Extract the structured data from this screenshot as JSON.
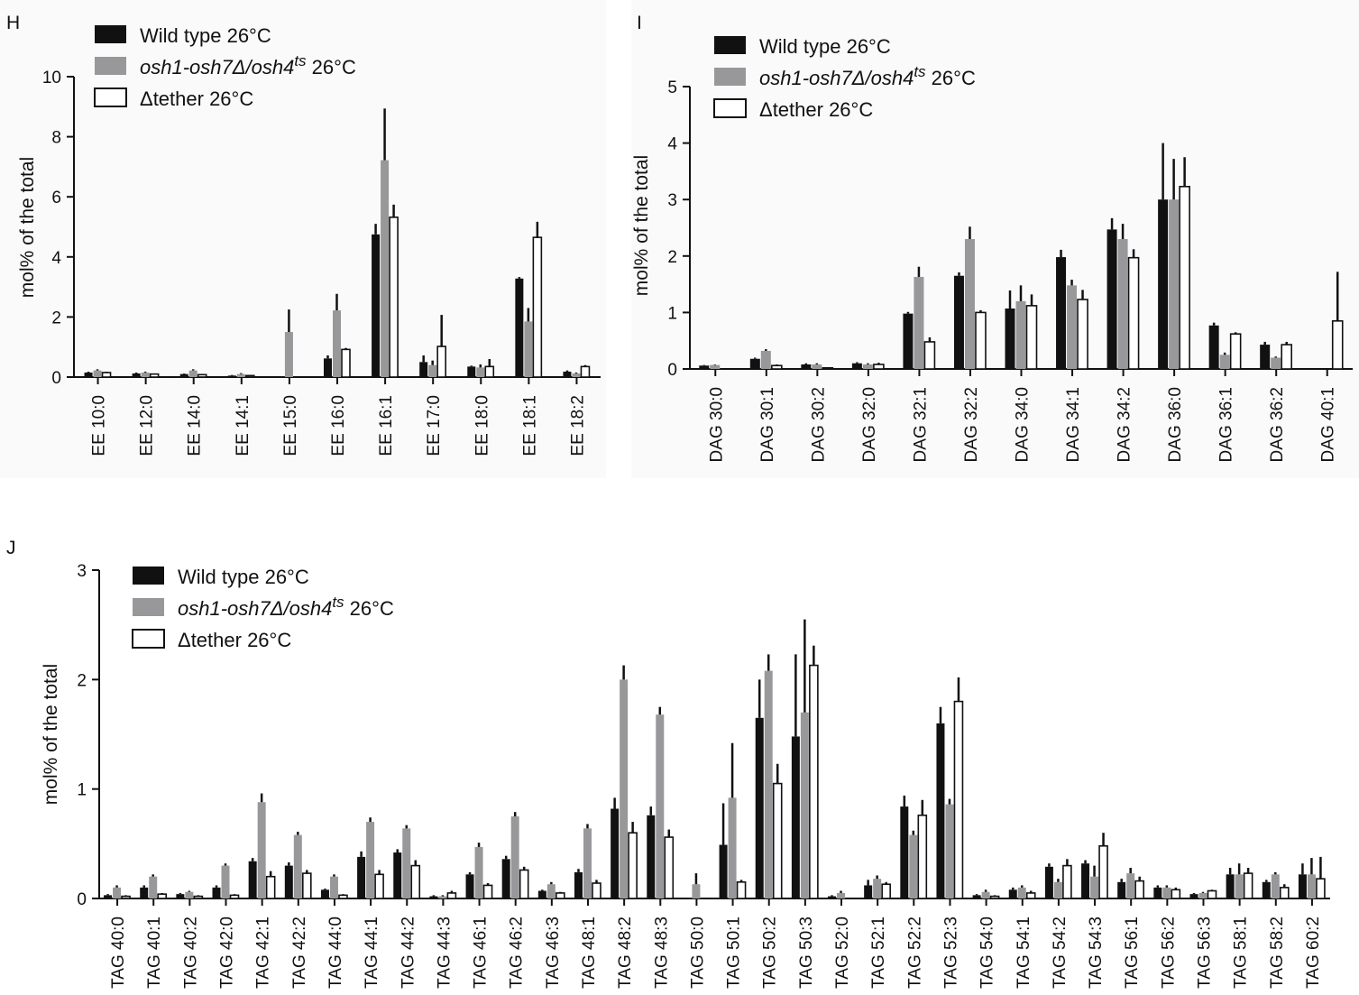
{
  "chart_data": [
    {
      "type": "bar",
      "panel_label": "H",
      "ylabel": "mol% of the total",
      "ylim": [
        0,
        10
      ],
      "yticks": [
        "0",
        "2",
        "4",
        "6",
        "8",
        "10"
      ],
      "categories": [
        "EE 10:0",
        "EE 12:0",
        "EE 14:0",
        "EE 14:1",
        "EE 15:0",
        "EE 16:0",
        "EE 16:1",
        "EE 17:0",
        "EE 18:0",
        "EE 18:1",
        "EE 18:2"
      ],
      "legend_position": "top-left",
      "series": [
        {
          "name": "Wild type 26°C",
          "color": "#111111",
          "values": [
            0.15,
            0.12,
            0.1,
            0.05,
            0.0,
            0.62,
            4.75,
            0.5,
            0.35,
            3.28,
            0.18
          ],
          "errors": [
            0.03,
            0.03,
            0.02,
            0.02,
            0.0,
            0.1,
            0.35,
            0.22,
            0.03,
            0.05,
            0.04
          ]
        },
        {
          "name_parts": [
            "osh1-osh7Δ/osh4",
            "ts",
            " 26°C"
          ],
          "color": "#98989a",
          "values": [
            0.22,
            0.15,
            0.22,
            0.1,
            1.5,
            2.22,
            7.22,
            0.4,
            0.32,
            1.85,
            0.12
          ],
          "errors": [
            0.04,
            0.03,
            0.04,
            0.03,
            0.75,
            0.55,
            1.72,
            0.15,
            0.1,
            0.45,
            0.03
          ]
        },
        {
          "name": "Δtether 26°C",
          "color": "#ffffff",
          "values": [
            0.15,
            0.1,
            0.08,
            0.05,
            0.0,
            0.92,
            5.32,
            1.02,
            0.35,
            4.65,
            0.35
          ],
          "errors": [
            0.03,
            0.02,
            0.02,
            0.02,
            0.0,
            0.05,
            0.42,
            1.05,
            0.25,
            0.52,
            0.05
          ]
        }
      ]
    },
    {
      "type": "bar",
      "panel_label": "I",
      "ylabel": "mol% of the total",
      "ylim": [
        0,
        5
      ],
      "yticks": [
        "0",
        "1",
        "2",
        "3",
        "4",
        "5"
      ],
      "categories": [
        "DAG 30:0",
        "DAG 30:1",
        "DAG 30:2",
        "DAG 32:0",
        "DAG 32:1",
        "DAG 32:2",
        "DAG 34:0",
        "DAG 34:1",
        "DAG 34:2",
        "DAG 36:0",
        "DAG 36:1",
        "DAG 36:2",
        "DAG 40:1"
      ],
      "legend_position": "top-left",
      "series": [
        {
          "name": "Wild type 26°C",
          "color": "#111111",
          "values": [
            0.06,
            0.18,
            0.08,
            0.1,
            0.98,
            1.65,
            1.07,
            1.98,
            2.47,
            3.0,
            0.77,
            0.43,
            0.0
          ],
          "errors": [
            0.01,
            0.02,
            0.02,
            0.02,
            0.03,
            0.06,
            0.32,
            0.13,
            0.2,
            1.0,
            0.05,
            0.05,
            0.0
          ]
        },
        {
          "name_parts": [
            "osh1-osh7Δ/osh4",
            "ts",
            " 26°C"
          ],
          "color": "#98989a",
          "values": [
            0.07,
            0.32,
            0.08,
            0.08,
            1.63,
            2.3,
            1.2,
            1.48,
            2.3,
            3.0,
            0.25,
            0.2,
            0.0
          ],
          "errors": [
            0.01,
            0.03,
            0.02,
            0.02,
            0.18,
            0.22,
            0.28,
            0.1,
            0.27,
            0.72,
            0.04,
            0.02,
            0.0
          ]
        },
        {
          "name": "Δtether 26°C",
          "color": "#ffffff",
          "values": [
            0.0,
            0.06,
            0.02,
            0.08,
            0.48,
            1.0,
            1.12,
            1.23,
            1.97,
            3.23,
            0.62,
            0.43,
            0.85
          ],
          "errors": [
            0.0,
            0.02,
            0.01,
            0.03,
            0.08,
            0.04,
            0.2,
            0.17,
            0.15,
            0.52,
            0.03,
            0.05,
            0.87
          ]
        }
      ]
    },
    {
      "type": "bar",
      "panel_label": "J",
      "ylabel": "mol% of the total",
      "ylim": [
        0,
        3
      ],
      "yticks": [
        "0",
        "1",
        "2",
        "3"
      ],
      "categories": [
        "TAG 40:0",
        "TAG 40:1",
        "TAG 40:2",
        "TAG 42:0",
        "TAG 42:1",
        "TAG 42:2",
        "TAG 44:0",
        "TAG 44:1",
        "TAG 44:2",
        "TAG 44:3",
        "TAG 46:1",
        "TAG 46:2",
        "TAG 46:3",
        "TAG 48:1",
        "TAG 48:2",
        "TAG 48:3",
        "TAG 50:0",
        "TAG 50:1",
        "TAG 50:2",
        "TAG 50:3",
        "TAG 52:0",
        "TAG 52:1",
        "TAG 52:2",
        "TAG 52:3",
        "TAG 54:0",
        "TAG 54:1",
        "TAG 54:2",
        "TAG 54:3",
        "TAG 56:1",
        "TAG 56:2",
        "TAG 56:3",
        "TAG 58:1",
        "TAG 58:2",
        "TAG 60:2"
      ],
      "legend_position": "top-left",
      "series": [
        {
          "name": "Wild type 26°C",
          "color": "#111111",
          "values": [
            0.03,
            0.1,
            0.04,
            0.1,
            0.34,
            0.3,
            0.08,
            0.38,
            0.42,
            0.02,
            0.22,
            0.36,
            0.07,
            0.24,
            0.82,
            0.76,
            0.0,
            0.49,
            1.65,
            1.48,
            0.02,
            0.12,
            0.84,
            1.6,
            0.03,
            0.08,
            0.29,
            0.32,
            0.15,
            0.1,
            0.04,
            0.22,
            0.15,
            0.22
          ],
          "errors": [
            0.01,
            0.02,
            0.01,
            0.02,
            0.03,
            0.03,
            0.01,
            0.05,
            0.03,
            0.01,
            0.02,
            0.03,
            0.01,
            0.03,
            0.1,
            0.08,
            0.0,
            0.38,
            0.35,
            0.75,
            0.01,
            0.05,
            0.1,
            0.15,
            0.01,
            0.02,
            0.03,
            0.03,
            0.03,
            0.02,
            0.01,
            0.06,
            0.02,
            0.1
          ]
        },
        {
          "name_parts": [
            "osh1-osh7Δ/osh4",
            "ts",
            " 26°C"
          ],
          "color": "#98989a",
          "values": [
            0.1,
            0.2,
            0.06,
            0.3,
            0.88,
            0.58,
            0.2,
            0.7,
            0.64,
            0.02,
            0.47,
            0.75,
            0.13,
            0.64,
            2.0,
            1.68,
            0.13,
            0.92,
            2.08,
            1.7,
            0.05,
            0.18,
            0.58,
            0.86,
            0.06,
            0.1,
            0.15,
            0.2,
            0.23,
            0.1,
            0.05,
            0.22,
            0.22,
            0.22
          ],
          "errors": [
            0.02,
            0.02,
            0.01,
            0.02,
            0.08,
            0.03,
            0.02,
            0.04,
            0.03,
            0.01,
            0.04,
            0.04,
            0.02,
            0.04,
            0.13,
            0.07,
            0.1,
            0.5,
            0.15,
            0.85,
            0.02,
            0.03,
            0.04,
            0.05,
            0.02,
            0.02,
            0.03,
            0.1,
            0.05,
            0.02,
            0.01,
            0.1,
            0.02,
            0.15
          ]
        },
        {
          "name": "Δtether 26°C",
          "color": "#ffffff",
          "values": [
            0.02,
            0.04,
            0.02,
            0.03,
            0.2,
            0.23,
            0.03,
            0.22,
            0.3,
            0.05,
            0.12,
            0.26,
            0.05,
            0.14,
            0.6,
            0.56,
            0.0,
            0.15,
            1.05,
            2.13,
            0.0,
            0.13,
            0.76,
            1.8,
            0.02,
            0.05,
            0.3,
            0.48,
            0.16,
            0.08,
            0.07,
            0.23,
            0.1,
            0.18
          ],
          "errors": [
            0.01,
            0.01,
            0.01,
            0.01,
            0.05,
            0.03,
            0.01,
            0.04,
            0.05,
            0.02,
            0.02,
            0.03,
            0.01,
            0.03,
            0.1,
            0.07,
            0.0,
            0.02,
            0.18,
            0.18,
            0.0,
            0.02,
            0.14,
            0.22,
            0.01,
            0.02,
            0.06,
            0.12,
            0.04,
            0.02,
            0.01,
            0.05,
            0.03,
            0.2
          ]
        }
      ]
    }
  ]
}
